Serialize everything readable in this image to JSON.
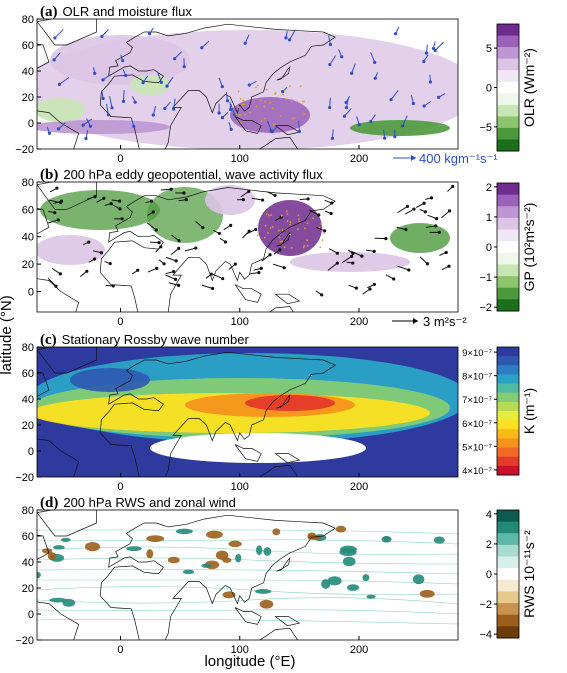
{
  "figure": {
    "ylabel": "latitude (°N)",
    "xlabel": "longitude (°E)"
  },
  "chart_data": [
    {
      "type": "heatmap",
      "panel_letter": "(a)",
      "title": "OLR and moisture flux",
      "x_ticks": [
        "0",
        "100",
        "200"
      ],
      "y_ticks": [
        "80",
        "60",
        "40",
        "20",
        "0",
        "−20"
      ],
      "colorbar": {
        "label": "OLR (Wm⁻²)",
        "ticks": [
          "5",
          "0",
          "−5"
        ],
        "range": [
          -8,
          8
        ],
        "colors": [
          "#1b6e1b",
          "#4c9a3c",
          "#8cc56e",
          "#c8e6b4",
          "#eef7ea",
          "#ffffff",
          "#f1e6f3",
          "#dcc4e6",
          "#bd97d3",
          "#9a62b9",
          "#6e2c8e"
        ]
      },
      "vector_reference": "400 kgm⁻¹s⁻¹"
    },
    {
      "type": "heatmap",
      "panel_letter": "(b)",
      "title": "200 hPa eddy geopotential, wave activity flux",
      "x_ticks": [
        "0",
        "100",
        "200"
      ],
      "y_ticks": [
        "80",
        "60",
        "40",
        "20",
        "0"
      ],
      "colorbar": {
        "label": "GP (10²m²s⁻²)",
        "ticks": [
          "2",
          "1",
          "0",
          "−1",
          "−2"
        ],
        "range": [
          -2,
          2
        ],
        "colors": [
          "#1b6e1b",
          "#4c9a3c",
          "#8cc56e",
          "#c8e6b4",
          "#eef7ea",
          "#ffffff",
          "#f1e6f3",
          "#dcc4e6",
          "#bd97d3",
          "#9a62b9",
          "#6e2c8e"
        ]
      },
      "vector_reference": "3 m²s⁻²"
    },
    {
      "type": "heatmap",
      "panel_letter": "(c)",
      "title": "Stationary Rossby wave number",
      "x_ticks": [
        "0",
        "100",
        "200"
      ],
      "y_ticks": [
        "80",
        "60",
        "40",
        "20",
        "0",
        "−20"
      ],
      "colorbar": {
        "label": "K (m⁻¹)",
        "ticks": [
          "9×10⁻⁷",
          "8×10⁻⁷",
          "7×10⁻⁷",
          "6×10⁻⁷",
          "5×10⁻⁷",
          "4×10⁻⁷"
        ],
        "range": [
          4e-07,
          9e-07
        ],
        "colors": [
          "#c8102e",
          "#e43a2a",
          "#f06a25",
          "#f7931e",
          "#fbb917",
          "#fde021",
          "#e6ec3a",
          "#b7dc54",
          "#84cc74",
          "#4fbba3",
          "#2aa3c6",
          "#2b7fc2",
          "#2d58b2",
          "#2f3a9e"
        ]
      }
    },
    {
      "type": "heatmap",
      "panel_letter": "(d)",
      "title": "200 hPa RWS and zonal wind",
      "x_ticks": [
        "0",
        "100",
        "200"
      ],
      "y_ticks": [
        "80",
        "60",
        "40",
        "20",
        "0",
        "−20"
      ],
      "colorbar": {
        "label": "RWS 10⁻¹¹s⁻²",
        "ticks": [
          "4",
          "2",
          "0",
          "−2",
          "−4"
        ],
        "range": [
          -5,
          5
        ],
        "colors": [
          "#6b3b08",
          "#9b5e1c",
          "#c89350",
          "#e7c98d",
          "#f6ead0",
          "#ffffff",
          "#d7efea",
          "#a8dcd1",
          "#5fb9a8",
          "#24897a",
          "#0d5a4e"
        ]
      }
    }
  ]
}
